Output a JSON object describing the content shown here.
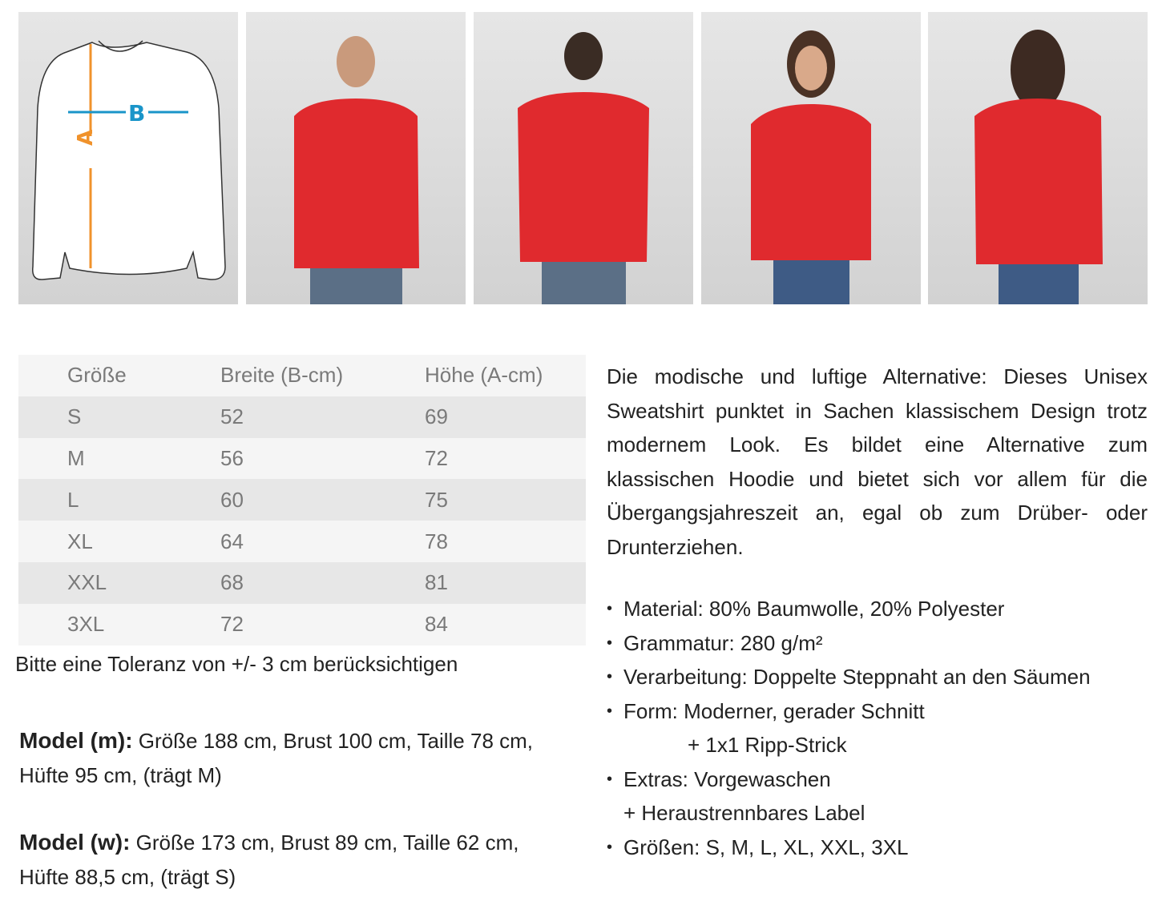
{
  "diagram": {
    "label_a": "A",
    "label_b": "B",
    "color_a": "#f0922b",
    "color_b": "#1a95c9"
  },
  "photos": [
    "model-m-front",
    "model-m-back",
    "model-w-front",
    "model-w-back"
  ],
  "product_color": "#e02a2e",
  "size_table": {
    "headers": [
      "Größe",
      "Breite (B-cm)",
      "Höhe (A-cm)"
    ],
    "rows": [
      [
        "S",
        "52",
        "69"
      ],
      [
        "M",
        "56",
        "72"
      ],
      [
        "L",
        "60",
        "75"
      ],
      [
        "XL",
        "64",
        "78"
      ],
      [
        "XXL",
        "68",
        "81"
      ],
      [
        "3XL",
        "72",
        "84"
      ]
    ]
  },
  "tolerance": "Bitte eine Toleranz von +/- 3 cm berücksichtigen",
  "model_m": {
    "label": "Model (m):",
    "text": " Größe 188 cm, Brust 100 cm, Taille 78 cm, Hüfte 95 cm, (trägt M)"
  },
  "model_w": {
    "label": "Model (w):",
    "text": " Größe 173 cm, Brust 89 cm, Taille 62 cm, Hüfte 88,5 cm, (trägt S)"
  },
  "description": "Die modische und luftige Alternative: Dieses Unisex Sweatshirt punktet in Sachen klassischem Design trotz modernem Look. Es bildet eine Alternative zum klassischen Hoodie und bietet sich vor allem für die Übergangsjahreszeit an, egal ob zum Drüber- oder Drunterziehen.",
  "specs": [
    "Material: 80% Baumwolle, 20% Polyester",
    "Grammatur: 280 g/m²",
    "Verarbeitung: Doppelte Steppnaht an den Säumen",
    "Form: Moderner, gerader Schnitt",
    "+ 1x1 Ripp-Strick",
    "Extras: Vorgewaschen",
    "+ Heraustrennbares Label",
    "Größen:  S, M, L, XL, XXL, 3XL"
  ]
}
